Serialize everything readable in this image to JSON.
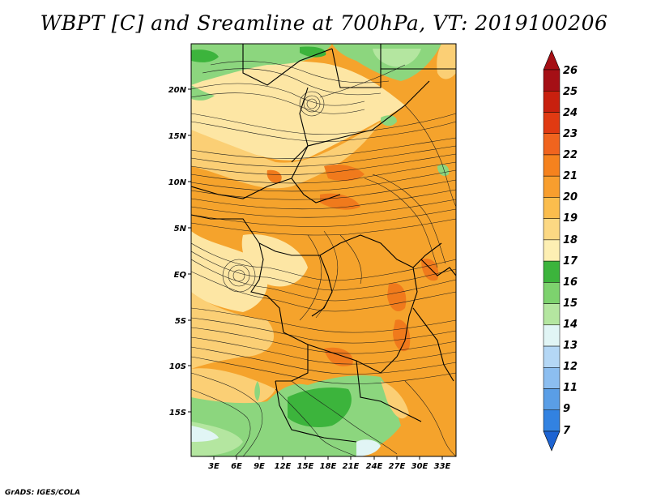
{
  "title": "WBPT [C] and Sreamline at 700hPa, VT: 2019100206",
  "credit": "GrADS: IGES/COLA",
  "lat_labels": [
    "20N",
    "15N",
    "10N",
    "5N",
    "EQ",
    "5S",
    "10S",
    "15S"
  ],
  "lon_labels": [
    "3E",
    "6E",
    "9E",
    "12E",
    "15E",
    "18E",
    "21E",
    "24E",
    "27E",
    "30E",
    "33E"
  ],
  "colorbar": {
    "labels": [
      "26",
      "25",
      "24",
      "23",
      "22",
      "21",
      "20",
      "19",
      "18",
      "17",
      "16",
      "15",
      "14",
      "13",
      "12",
      "11",
      "9",
      "7"
    ],
    "colors": [
      "#a50f15",
      "#c8200e",
      "#e03a12",
      "#f0641e",
      "#f5821e",
      "#f89e2e",
      "#fbbd4d",
      "#fcd883",
      "#fdefb3",
      "#3cb43c",
      "#7dd26e",
      "#b4e6a0",
      "#e1f5f5",
      "#b4d7f5",
      "#8cbef0",
      "#5a9ee6",
      "#3282e1",
      "#1e64d2"
    ]
  },
  "colors": {
    "cool": "#8cd67e",
    "warm": "#f5a32c",
    "hot": "#f07a1c",
    "mild": "#fde6a4"
  }
}
